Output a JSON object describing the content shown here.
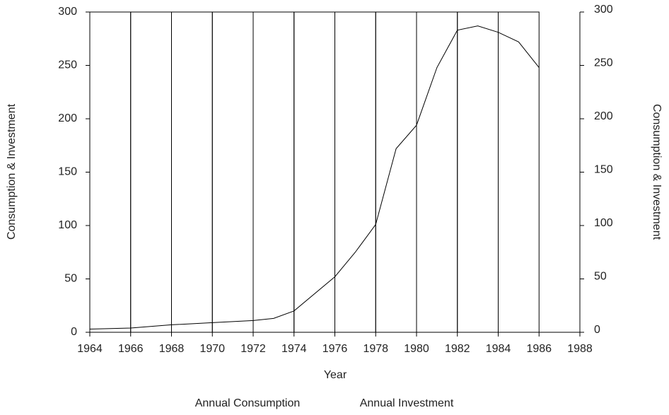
{
  "chart_data": {
    "type": "combo",
    "x_label": "Year",
    "y_label": "Consumption & Investment",
    "y2_label": "Consumption & Investment",
    "xlim": [
      1964,
      1988
    ],
    "xticks": [
      1964,
      1966,
      1968,
      1970,
      1972,
      1974,
      1976,
      1978,
      1980,
      1982,
      1984,
      1986,
      1988
    ],
    "ylim": [
      0,
      300
    ],
    "yticks": [
      0,
      50,
      100,
      150,
      200,
      250,
      300
    ],
    "y2lim": [
      0,
      300
    ],
    "y2ticks": [
      0,
      50,
      100,
      150,
      200,
      250,
      300
    ],
    "bar_width": 2,
    "series": [
      {
        "name": "Annual Consumption",
        "type": "bar",
        "color": "#000000",
        "x": [
          1964,
          1966,
          1968,
          1970,
          1972,
          1974,
          1976,
          1978,
          1980,
          1982,
          1984
        ],
        "values": [
          300,
          300,
          300,
          300,
          300,
          300,
          300,
          300,
          300,
          300,
          300
        ]
      },
      {
        "name": "Annual Investment",
        "type": "line",
        "color": "#000000",
        "x": [
          1964,
          1966,
          1968,
          1970,
          1972,
          1973,
          1974,
          1976,
          1977,
          1978,
          1979,
          1980,
          1981,
          1982,
          1983,
          1984,
          1985,
          1986
        ],
        "values": [
          3,
          4,
          7,
          9,
          11,
          13,
          20,
          52,
          75,
          101,
          172,
          194,
          248,
          283,
          287,
          281,
          272,
          248
        ]
      }
    ]
  }
}
